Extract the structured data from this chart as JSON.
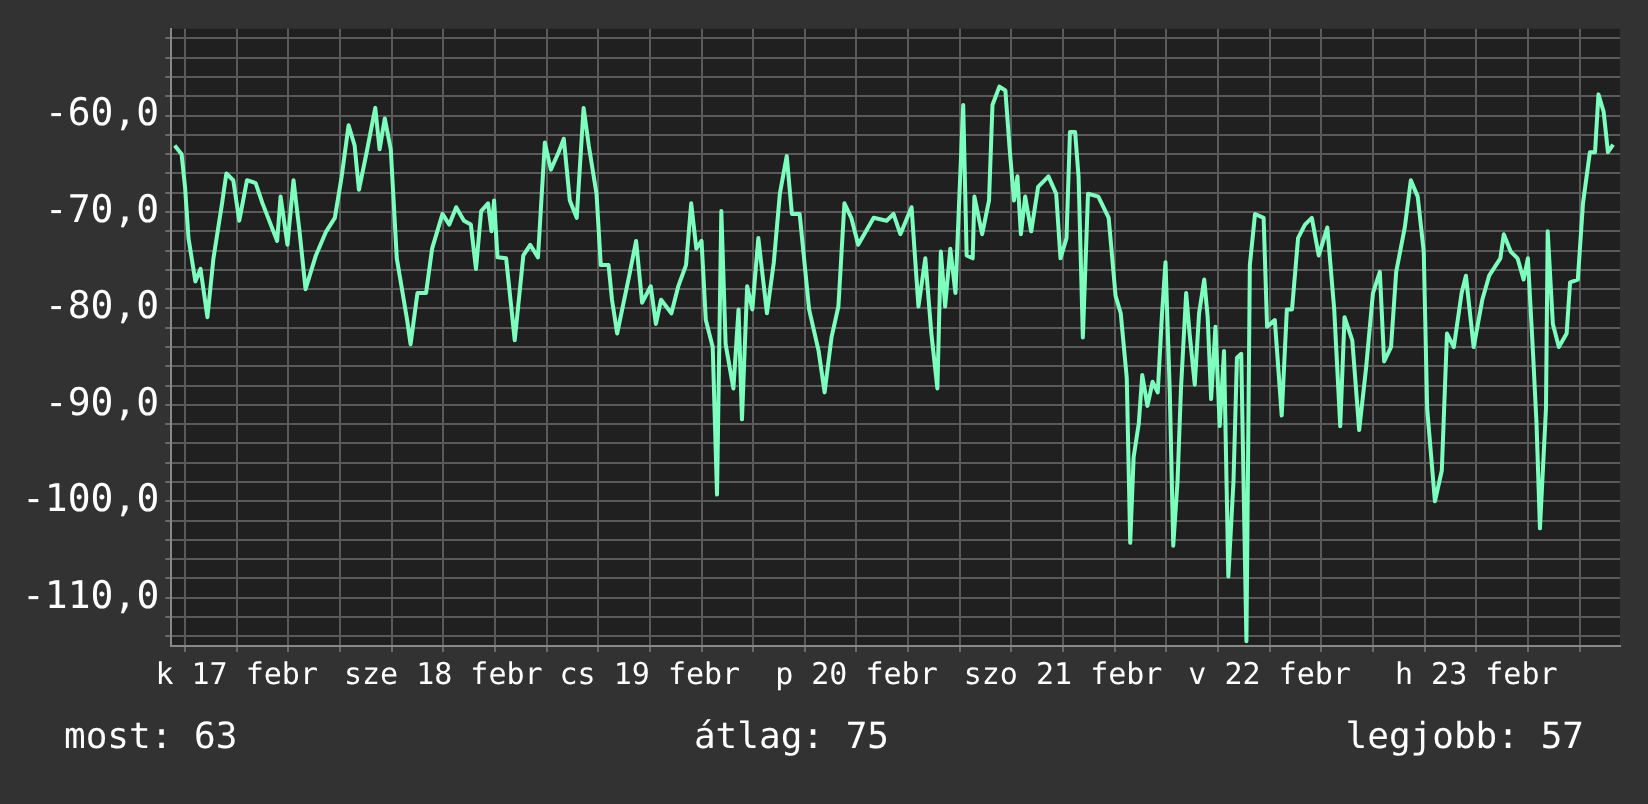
{
  "chart_data": {
    "type": "line",
    "xlim": [
      "--02-17T04:24",
      "--02-24T04:42"
    ],
    "ylim": [
      -115,
      -51
    ],
    "xticks": [
      {
        "value": "--02-17T06:00",
        "label": null
      },
      {
        "value": "--02-17T12:00",
        "label": "k 17 febr"
      },
      {
        "value": "--02-17T18:00",
        "label": null
      },
      {
        "value": "--02-18T00:00",
        "label": null
      },
      {
        "value": "--02-18T06:00",
        "label": null
      },
      {
        "value": "--02-18T12:00",
        "label": "sze 18 febr"
      },
      {
        "value": "--02-18T18:00",
        "label": null
      },
      {
        "value": "--02-19T00:00",
        "label": null
      },
      {
        "value": "--02-19T06:00",
        "label": null
      },
      {
        "value": "--02-19T12:00",
        "label": "cs 19 febr"
      },
      {
        "value": "--02-19T18:00",
        "label": null
      },
      {
        "value": "--02-20T00:00",
        "label": null
      },
      {
        "value": "--02-20T06:00",
        "label": null
      },
      {
        "value": "--02-20T12:00",
        "label": "p 20 febr"
      },
      {
        "value": "--02-20T18:00",
        "label": null
      },
      {
        "value": "--02-21T00:00",
        "label": null
      },
      {
        "value": "--02-21T06:00",
        "label": null
      },
      {
        "value": "--02-21T12:00",
        "label": "szo 21 febr"
      },
      {
        "value": "--02-21T18:00",
        "label": null
      },
      {
        "value": "--02-22T00:00",
        "label": null
      },
      {
        "value": "--02-22T06:00",
        "label": null
      },
      {
        "value": "--02-22T12:00",
        "label": "v 22 febr"
      },
      {
        "value": "--02-22T18:00",
        "label": null
      },
      {
        "value": "--02-23T00:00",
        "label": null
      },
      {
        "value": "--02-23T06:00",
        "label": null
      },
      {
        "value": "--02-23T12:00",
        "label": "h 23 febr"
      },
      {
        "value": "--02-23T18:00",
        "label": null
      },
      {
        "value": "--02-24T00:00",
        "label": null
      }
    ],
    "yticks": [
      {
        "value": -114,
        "label": null
      },
      {
        "value": -112,
        "label": null
      },
      {
        "value": -110,
        "label": "-110,0"
      },
      {
        "value": -108,
        "label": null
      },
      {
        "value": -106,
        "label": null
      },
      {
        "value": -104,
        "label": null
      },
      {
        "value": -102,
        "label": null
      },
      {
        "value": -100,
        "label": "-100,0"
      },
      {
        "value": -98,
        "label": null
      },
      {
        "value": -96,
        "label": null
      },
      {
        "value": -94,
        "label": null
      },
      {
        "value": -92,
        "label": null
      },
      {
        "value": -90,
        "label": "-90,0"
      },
      {
        "value": -88,
        "label": null
      },
      {
        "value": -86,
        "label": null
      },
      {
        "value": -84,
        "label": null
      },
      {
        "value": -82,
        "label": null
      },
      {
        "value": -80,
        "label": "-80,0"
      },
      {
        "value": -78,
        "label": null
      },
      {
        "value": -76,
        "label": null
      },
      {
        "value": -74,
        "label": null
      },
      {
        "value": -72,
        "label": null
      },
      {
        "value": -70,
        "label": "-70,0"
      },
      {
        "value": -68,
        "label": null
      },
      {
        "value": -66,
        "label": null
      },
      {
        "value": -64,
        "label": null
      },
      {
        "value": -62,
        "label": null
      },
      {
        "value": -60,
        "label": "-60,0"
      },
      {
        "value": -58,
        "label": null
      },
      {
        "value": -56,
        "label": null
      },
      {
        "value": -54,
        "label": null
      },
      {
        "value": -52,
        "label": null
      }
    ],
    "grid": true,
    "legend": false,
    "marker": "none",
    "line_style": "solid",
    "annotations": [
      "most: 63",
      "átlag: 75",
      "legjobb: 57"
    ],
    "series": [
      {
        "color": "#7dffbe",
        "x": [
          "--02-17T04:48",
          "--02-17T05:36",
          "--02-17T06:00",
          "--02-17T06:24",
          "--02-17T07:12",
          "--02-17T07:48",
          "--02-17T08:36",
          "--02-17T09:18",
          "--02-17T10:18",
          "--02-17T10:48",
          "--02-17T11:36",
          "--02-17T12:18",
          "--02-17T13:12",
          "--02-17T14:12",
          "--02-17T15:00",
          "--02-17T16:42",
          "--02-17T17:06",
          "--02-17T17:54",
          "--02-17T18:36",
          "--02-17T19:18",
          "--02-17T20:00",
          "--02-17T21:12",
          "--02-17T22:24",
          "--02-17T23:24",
          "--02-18T00:12",
          "--02-18T01:00",
          "--02-18T01:42",
          "--02-18T02:12",
          "--02-18T03:06",
          "--02-18T04:06",
          "--02-18T04:36",
          "--02-18T05:12",
          "--02-18T05:54",
          "--02-18T06:36",
          "--02-18T07:48",
          "--02-18T08:12",
          "--02-18T09:00",
          "--02-18T10:00",
          "--02-18T10:42",
          "--02-18T11:54",
          "--02-18T12:42",
          "--02-18T13:30",
          "--02-18T14:24",
          "--02-18T15:12",
          "--02-18T15:48",
          "--02-18T16:24",
          "--02-18T17:12",
          "--02-18T17:36",
          "--02-18T17:54",
          "--02-18T18:18",
          "--02-18T19:18",
          "--02-18T20:18",
          "--02-18T21:18",
          "--02-18T22:06",
          "--02-18T23:00",
          "--02-18T23:48",
          "--02-19T00:30",
          "--02-19T01:24",
          "--02-19T02:00",
          "--02-19T02:42",
          "--02-19T03:30",
          "--02-19T04:18",
          "--02-19T04:54",
          "--02-19T05:48",
          "--02-19T06:18",
          "--02-19T07:12",
          "--02-19T07:36",
          "--02-19T08:12",
          "--02-19T09:36",
          "--02-19T10:24",
          "--02-19T11:06",
          "--02-19T12:06",
          "--02-19T12:42",
          "--02-19T13:18",
          "--02-19T14:30",
          "--02-19T15:18",
          "--02-19T16:12",
          "--02-19T16:48",
          "--02-19T17:24",
          "--02-19T18:00",
          "--02-19T18:30",
          "--02-19T19:18",
          "--02-19T19:48",
          "--02-19T20:18",
          "--02-19T20:48",
          "--02-19T21:42",
          "--02-19T22:18",
          "--02-19T22:42",
          "--02-19T23:18",
          "--02-19T23:54",
          "--02-20T00:36",
          "--02-20T01:36",
          "--02-20T02:24",
          "--02-20T03:06",
          "--02-20T03:54",
          "--02-20T04:30",
          "--02-20T05:24",
          "--02-20T06:30",
          "--02-20T07:36",
          "--02-20T08:18",
          "--02-20T09:06",
          "--02-20T09:54",
          "--02-20T10:36",
          "--02-20T11:24",
          "--02-20T12:12",
          "--02-20T13:06",
          "--02-20T14:00",
          "--02-20T15:30",
          "--02-20T16:18",
          "--02-20T17:06",
          "--02-20T18:24",
          "--02-20T19:12",
          "--02-20T20:00",
          "--02-20T20:42",
          "--02-20T21:24",
          "--02-20T21:48",
          "--02-20T22:18",
          "--02-20T22:54",
          "--02-20T23:30",
          "--02-20T23:54",
          "--02-21T00:24",
          "--02-21T00:48",
          "--02-21T01:30",
          "--02-21T01:42",
          "--02-21T02:36",
          "--02-21T03:24",
          "--02-21T03:48",
          "--02-21T04:36",
          "--02-21T05:18",
          "--02-21T05:48",
          "--02-21T06:18",
          "--02-21T06:42",
          "--02-21T07:06",
          "--02-21T07:36",
          "--02-21T08:18",
          "--02-21T09:06",
          "--02-21T10:18",
          "--02-21T11:12",
          "--02-21T11:42",
          "--02-21T12:24",
          "--02-21T12:48",
          "--02-21T13:24",
          "--02-21T13:48",
          "--02-21T14:18",
          "--02-21T14:54",
          "--02-21T16:06",
          "--02-21T17:18",
          "--02-21T18:06",
          "--02-21T18:42",
          "--02-21T19:24",
          "--02-21T19:48",
          "--02-21T20:12",
          "--02-21T20:48",
          "--02-21T21:12",
          "--02-21T21:48",
          "--02-21T22:24",
          "--02-21T23:00",
          "--02-21T23:30",
          "--02-21T23:54",
          "--02-22T00:24",
          "--02-22T00:48",
          "--02-22T01:18",
          "--02-22T01:42",
          "--02-22T02:18",
          "--02-22T02:42",
          "--02-22T03:18",
          "--02-22T03:48",
          "--02-22T04:24",
          "--02-22T04:48",
          "--02-22T05:12",
          "--02-22T05:42",
          "--02-22T06:12",
          "--02-22T06:42",
          "--02-22T07:12",
          "--02-22T07:48",
          "--02-22T08:12",
          "--02-22T08:42",
          "--02-22T09:18",
          "--02-22T09:42",
          "--02-22T10:18",
          "--02-22T11:18",
          "--02-22T11:42",
          "--02-22T12:36",
          "--02-22T13:24",
          "--02-22T14:00",
          "--02-22T14:36",
          "--02-22T15:18",
          "--02-22T16:06",
          "--02-22T16:54",
          "--02-22T17:42",
          "--02-22T18:42",
          "--02-22T19:30",
          "--02-22T20:12",
          "--02-22T20:42",
          "--02-22T21:36",
          "--02-22T22:24",
          "--02-22T23:12",
          "--02-23T00:00",
          "--02-23T00:48",
          "--02-23T01:18",
          "--02-23T02:06",
          "--02-23T02:42",
          "--02-23T03:42",
          "--02-23T04:24",
          "--02-23T05:12",
          "--02-23T05:54",
          "--02-23T06:18",
          "--02-23T07:12",
          "--02-23T08:00",
          "--02-23T08:36",
          "--02-23T09:24",
          "--02-23T10:18",
          "--02-23T10:48",
          "--02-23T11:42",
          "--02-23T12:42",
          "--02-23T13:30",
          "--02-23T14:48",
          "--02-23T15:12",
          "--02-23T16:00",
          "--02-23T16:48",
          "--02-23T17:30",
          "--02-23T18:00",
          "--02-23T18:36",
          "--02-23T19:00",
          "--02-23T19:24",
          "--02-23T20:06",
          "--02-23T20:18",
          "--02-23T20:54",
          "--02-23T21:36",
          "--02-23T22:30",
          "--02-23T22:54",
          "--02-23T23:48",
          "--02-24T00:24",
          "--02-24T01:12",
          "--02-24T01:48",
          "--02-24T02:12",
          "--02-24T02:48",
          "--02-24T03:18",
          "--02-24T03:54"
        ],
        "values": [
          -63.1,
          -64.0,
          -67.4,
          -72.7,
          -77.2,
          -75.9,
          -80.9,
          -74.8,
          -69.1,
          -66.0,
          -66.7,
          -70.9,
          -66.7,
          -67.0,
          -69.1,
          -73.0,
          -68.4,
          -73.4,
          -66.7,
          -72.0,
          -78.0,
          -74.5,
          -72.0,
          -70.6,
          -66.3,
          -61.0,
          -63.1,
          -67.7,
          -63.8,
          -59.2,
          -63.5,
          -60.3,
          -63.5,
          -74.8,
          -81.2,
          -83.7,
          -78.4,
          -78.4,
          -73.8,
          -70.2,
          -71.3,
          -69.5,
          -70.9,
          -71.3,
          -75.9,
          -69.9,
          -69.1,
          -72.0,
          -68.8,
          -74.7,
          -74.8,
          -83.3,
          -74.5,
          -73.4,
          -74.7,
          -62.8,
          -65.6,
          -63.8,
          -62.4,
          -68.8,
          -70.6,
          -59.2,
          -63.1,
          -68.1,
          -75.5,
          -75.5,
          -79.1,
          -82.6,
          -76.6,
          -73.0,
          -79.4,
          -77.7,
          -81.6,
          -79.1,
          -80.5,
          -77.7,
          -75.5,
          -69.1,
          -73.8,
          -73.0,
          -81.2,
          -84.0,
          -99.3,
          -69.9,
          -83.7,
          -88.3,
          -80.1,
          -91.5,
          -77.7,
          -80.1,
          -72.7,
          -80.5,
          -75.2,
          -68.1,
          -64.2,
          -70.2,
          -70.2,
          -80.1,
          -84.4,
          -88.7,
          -83.0,
          -79.8,
          -69.1,
          -70.6,
          -73.4,
          -72.0,
          -70.6,
          -70.9,
          -70.2,
          -72.3,
          -69.5,
          -79.8,
          -74.8,
          -82.6,
          -88.3,
          -74.1,
          -79.8,
          -73.8,
          -78.4,
          -69.5,
          -58.9,
          -74.5,
          -74.8,
          -68.4,
          -72.3,
          -68.8,
          -58.9,
          -57.0,
          -57.4,
          -63.5,
          -68.8,
          -66.3,
          -72.3,
          -68.4,
          -72.0,
          -67.4,
          -66.3,
          -68.1,
          -74.8,
          -72.7,
          -61.7,
          -61.7,
          -66.3,
          -83.0,
          -68.1,
          -68.4,
          -70.6,
          -78.7,
          -80.5,
          -87.2,
          -104.3,
          -95.4,
          -91.9,
          -86.9,
          -90.1,
          -87.6,
          -88.7,
          -80.5,
          -75.2,
          -88.7,
          -104.6,
          -97.9,
          -88.3,
          -78.4,
          -82.6,
          -87.9,
          -80.5,
          -77.0,
          -80.9,
          -89.4,
          -81.9,
          -92.2,
          -84.4,
          -107.8,
          -97.9,
          -85.1,
          -84.7,
          -114.5,
          -75.5,
          -70.2,
          -70.6,
          -81.9,
          -81.2,
          -91.1,
          -80.1,
          -80.1,
          -72.7,
          -71.3,
          -70.6,
          -74.5,
          -71.6,
          -80.1,
          -92.2,
          -80.9,
          -83.3,
          -92.6,
          -86.2,
          -78.4,
          -76.2,
          -85.5,
          -84.0,
          -76.2,
          -71.6,
          -66.7,
          -68.4,
          -74.1,
          -90.4,
          -100.0,
          -96.8,
          -82.6,
          -84.0,
          -78.4,
          -76.6,
          -84.0,
          -79.1,
          -76.6,
          -74.8,
          -72.3,
          -74.1,
          -74.8,
          -77.0,
          -74.8,
          -84.7,
          -91.9,
          -102.8,
          -90.4,
          -72.0,
          -81.6,
          -84.0,
          -82.6,
          -77.3,
          -77.0,
          -69.1,
          -63.8,
          -63.8,
          -57.8,
          -59.6,
          -63.8,
          -63.0
        ]
      }
    ]
  }
}
